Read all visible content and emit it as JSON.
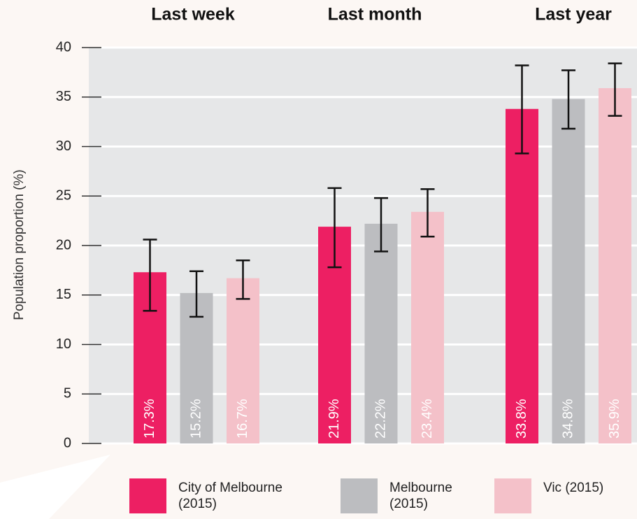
{
  "chart_data": {
    "type": "bar",
    "categories": [
      "Last week",
      "Last month",
      "Last year"
    ],
    "y_label": "Population proportion (%)",
    "ylim": [
      0,
      40
    ],
    "yticks": [
      0,
      5,
      10,
      15,
      20,
      25,
      30,
      35,
      40
    ],
    "grid": true,
    "series": [
      {
        "name": "City of Melbourne (2015)",
        "color": "#ed1f63",
        "values": [
          17.3,
          21.9,
          33.8
        ],
        "value_labels": [
          "17.3%",
          "21.9%",
          "33.8%"
        ],
        "ci_low": [
          13.4,
          17.8,
          29.3
        ],
        "ci_high": [
          20.6,
          25.8,
          38.2
        ]
      },
      {
        "name": "Melbourne (2015)",
        "color": "#bcbdc0",
        "values": [
          15.2,
          22.2,
          34.8
        ],
        "value_labels": [
          "15.2%",
          "22.2%",
          "34.8%"
        ],
        "ci_low": [
          12.8,
          19.4,
          31.8
        ],
        "ci_high": [
          17.4,
          24.8,
          37.7
        ]
      },
      {
        "name": "Vic (2015)",
        "color": "#f4c1c9",
        "values": [
          16.7,
          23.4,
          35.9
        ],
        "value_labels": [
          "16.7%",
          "23.4%",
          "35.9%"
        ],
        "ci_low": [
          14.6,
          20.9,
          33.1
        ],
        "ci_high": [
          18.5,
          25.7,
          38.4
        ]
      }
    ]
  }
}
